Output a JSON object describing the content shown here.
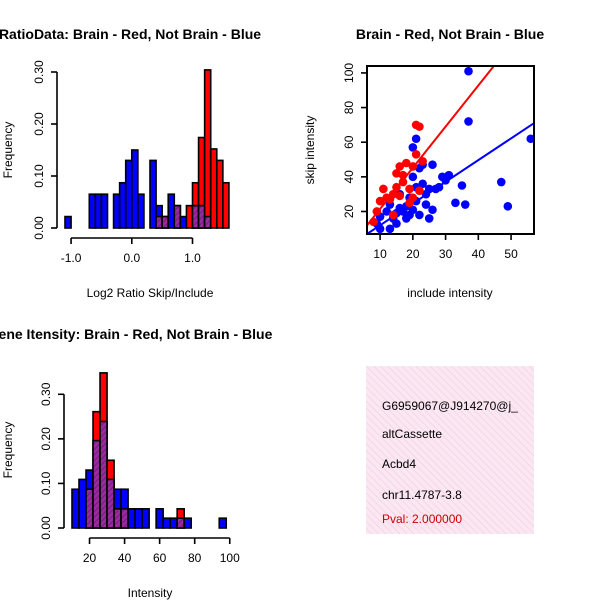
{
  "colors": {
    "red": "#ff0000",
    "blue": "#0000ff",
    "overlap": "#7a1e9e",
    "info_bg": "#f8e1ee",
    "pval": "#cc0000"
  },
  "chart_data": [
    {
      "id": "ratio",
      "type": "bar",
      "title": "RatioData: Brain - Red, Not Brain - Blue",
      "xlabel": "Log2 Ratio Skip/Include",
      "ylabel": "Frequency",
      "xlim": [
        -1.1,
        1.7
      ],
      "ylim": [
        0,
        0.3
      ],
      "xticks": [
        "-1.0",
        "0.0",
        "1.0"
      ],
      "xtick_values": [
        -1.0,
        0.0,
        1.0
      ],
      "yticks": [
        "0.00",
        "0.10",
        "0.20",
        "0.30"
      ],
      "ytick_values": [
        0,
        0.1,
        0.2,
        0.3
      ],
      "bin_width": 0.1,
      "series": [
        {
          "name": "Not Brain",
          "color": "blue",
          "bins": [
            [
              -1.1,
              0.022
            ],
            [
              -0.7,
              0.065
            ],
            [
              -0.6,
              0.065
            ],
            [
              -0.5,
              0.065
            ],
            [
              -0.3,
              0.065
            ],
            [
              -0.2,
              0.087
            ],
            [
              -0.1,
              0.13
            ],
            [
              0.0,
              0.15
            ],
            [
              0.1,
              0.065
            ],
            [
              0.3,
              0.13
            ],
            [
              0.4,
              0.043
            ],
            [
              0.5,
              0.022
            ],
            [
              0.6,
              0.065
            ],
            [
              0.7,
              0.043
            ],
            [
              0.8,
              0.022
            ],
            [
              1.0,
              0.043
            ],
            [
              1.1,
              0.043
            ],
            [
              1.2,
              0.022
            ]
          ]
        },
        {
          "name": "Brain",
          "color": "red",
          "bins": [
            [
              0.4,
              0.022
            ],
            [
              0.5,
              0.022
            ],
            [
              0.7,
              0.043
            ],
            [
              0.9,
              0.043
            ],
            [
              1.0,
              0.087
            ],
            [
              1.1,
              0.174
            ],
            [
              1.2,
              0.304
            ],
            [
              1.3,
              0.152
            ],
            [
              1.4,
              0.13
            ],
            [
              1.5,
              0.087
            ]
          ]
        }
      ]
    },
    {
      "id": "scatter",
      "type": "scatter",
      "title": "Brain - Red, Not Brain - Blue",
      "xlabel": "include intensity",
      "ylabel": "skip intensity",
      "xlim": [
        6,
        57
      ],
      "ylim": [
        7,
        104
      ],
      "xticks": [
        "10",
        "20",
        "30",
        "40",
        "50"
      ],
      "xtick_values": [
        10,
        20,
        30,
        40,
        50
      ],
      "yticks": [
        "20",
        "40",
        "60",
        "80",
        "100"
      ],
      "ytick_values": [
        20,
        40,
        60,
        80,
        100
      ],
      "series": [
        {
          "name": "Brain",
          "color": "red",
          "points": [
            [
              8,
              14
            ],
            [
              9,
              20
            ],
            [
              10,
              26
            ],
            [
              11,
              33
            ],
            [
              12,
              28
            ],
            [
              13,
              27
            ],
            [
              14,
              30
            ],
            [
              15,
              34
            ],
            [
              15,
              42
            ],
            [
              16,
              46
            ],
            [
              17,
              37
            ],
            [
              17,
              41
            ],
            [
              18,
              48
            ],
            [
              19,
              33
            ],
            [
              20,
              28
            ],
            [
              20,
              46
            ],
            [
              21,
              53
            ],
            [
              21,
              70
            ],
            [
              22,
              69
            ],
            [
              23,
              49
            ],
            [
              22,
              32
            ],
            [
              19,
              25
            ],
            [
              16,
              29
            ],
            [
              14,
              18
            ]
          ]
        },
        {
          "name": "Not Brain",
          "color": "blue",
          "points": [
            [
              9,
              13
            ],
            [
              10,
              17
            ],
            [
              10,
              10
            ],
            [
              12,
              20
            ],
            [
              13,
              24
            ],
            [
              13,
              10
            ],
            [
              14,
              16
            ],
            [
              15,
              13
            ],
            [
              15,
              19
            ],
            [
              16,
              22
            ],
            [
              16,
              30
            ],
            [
              17,
              20
            ],
            [
              18,
              16
            ],
            [
              18,
              23
            ],
            [
              19,
              28
            ],
            [
              19,
              18
            ],
            [
              20,
              21
            ],
            [
              20,
              40
            ],
            [
              21,
              26
            ],
            [
              21,
              34
            ],
            [
              22,
              45
            ],
            [
              22,
              18
            ],
            [
              23,
              36
            ],
            [
              23,
              47
            ],
            [
              24,
              24
            ],
            [
              24,
              30
            ],
            [
              25,
              16
            ],
            [
              25,
              33
            ],
            [
              26,
              21
            ],
            [
              26,
              47
            ],
            [
              27,
              33
            ],
            [
              28,
              34
            ],
            [
              29,
              40
            ],
            [
              30,
              38
            ],
            [
              31,
              41
            ],
            [
              33,
              25
            ],
            [
              35,
              35
            ],
            [
              36,
              24
            ],
            [
              37,
              101
            ],
            [
              37,
              72
            ],
            [
              47,
              37
            ],
            [
              49,
              23
            ],
            [
              56,
              62
            ],
            [
              21,
              62
            ],
            [
              20,
              57
            ]
          ]
        }
      ],
      "fits": [
        {
          "name": "Brain",
          "color": "red",
          "x": [
            6,
            46
          ],
          "y": [
            12,
            107
          ]
        },
        {
          "name": "Not Brain",
          "color": "blue",
          "x": [
            6,
            57
          ],
          "y": [
            7,
            71
          ]
        }
      ]
    },
    {
      "id": "intensity",
      "type": "bar",
      "title": "Gene Itensity: Brain - Red, Not Brain - Blue",
      "xlabel": "Intensity",
      "ylabel": "Frequency",
      "xlim": [
        10,
        103
      ],
      "ylim": [
        0,
        0.35
      ],
      "xticks": [
        "20",
        "40",
        "60",
        "80",
        "100"
      ],
      "xtick_values": [
        20,
        40,
        60,
        80,
        100
      ],
      "yticks": [
        "0.00",
        "0.10",
        "0.20",
        "0.30"
      ],
      "ytick_values": [
        0,
        0.1,
        0.2,
        0.3
      ],
      "bin_width": 4,
      "series": [
        {
          "name": "Not Brain",
          "color": "blue",
          "bins": [
            [
              10,
              0.087
            ],
            [
              14,
              0.109
            ],
            [
              18,
              0.13
            ],
            [
              22,
              0.196
            ],
            [
              26,
              0.239
            ],
            [
              30,
              0.109
            ],
            [
              34,
              0.087
            ],
            [
              38,
              0.087
            ],
            [
              42,
              0.043
            ],
            [
              46,
              0.043
            ],
            [
              50,
              0.043
            ],
            [
              58,
              0.043
            ],
            [
              62,
              0.022
            ],
            [
              66,
              0.022
            ],
            [
              70,
              0.022
            ],
            [
              74,
              0.022
            ],
            [
              94,
              0.022
            ]
          ]
        },
        {
          "name": "Brain",
          "color": "red",
          "bins": [
            [
              18,
              0.087
            ],
            [
              22,
              0.261
            ],
            [
              26,
              0.348
            ],
            [
              30,
              0.152
            ],
            [
              34,
              0.043
            ],
            [
              38,
              0.043
            ],
            [
              70,
              0.043
            ]
          ]
        }
      ]
    }
  ],
  "info": {
    "id": "G6959067@J914270@j_",
    "event": "altCassette",
    "gene": "Acbd4",
    "location": "chr11.4787-3.8",
    "pval": "Pval: 2.000000"
  }
}
